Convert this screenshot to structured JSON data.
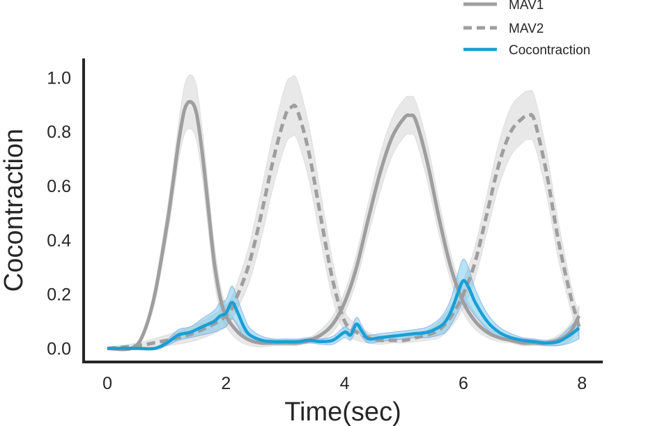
{
  "chart_data": {
    "type": "line",
    "xlabel": "Time(sec)",
    "ylabel": "Cocontraction",
    "xlim": [
      -0.4,
      8.35
    ],
    "ylim": [
      -0.05,
      1.07
    ],
    "xticks": [
      0,
      2,
      4,
      6,
      8
    ],
    "yticks": [
      0.0,
      0.2,
      0.4,
      0.6,
      0.8,
      1.0
    ],
    "ytick_labels": [
      "0.0",
      "0.2",
      "0.4",
      "0.6",
      "0.8",
      "1.0"
    ],
    "grid": false,
    "legend_position": "top-right",
    "colors": {
      "mav": "#9e9e9e",
      "mav_band": "#d6d6d6",
      "cocontraction": "#1a9ed6",
      "cocontraction_band": "#5ec1e8",
      "cocontraction_band_edge": "#6f8ee0",
      "axis": "#262626"
    },
    "series": [
      {
        "name": "MAV1",
        "style": "solid",
        "x": [
          0,
          0.4,
          0.6,
          0.8,
          1.0,
          1.1,
          1.2,
          1.3,
          1.4,
          1.5,
          1.6,
          1.7,
          1.8,
          1.9,
          2.0,
          2.2,
          2.4,
          2.6,
          2.8,
          3.0,
          3.2,
          3.4,
          3.6,
          3.8,
          4.0,
          4.2,
          4.4,
          4.6,
          4.8,
          5.0,
          5.1,
          5.2,
          5.4,
          5.6,
          5.8,
          6.0,
          6.2,
          6.4,
          6.6,
          6.8,
          7.0,
          7.2,
          7.4,
          7.6,
          7.8,
          7.95
        ],
        "y": [
          0.0,
          0.0,
          0.05,
          0.2,
          0.45,
          0.6,
          0.76,
          0.88,
          0.91,
          0.87,
          0.72,
          0.52,
          0.32,
          0.19,
          0.12,
          0.06,
          0.03,
          0.02,
          0.02,
          0.02,
          0.02,
          0.03,
          0.05,
          0.09,
          0.17,
          0.3,
          0.48,
          0.65,
          0.78,
          0.85,
          0.86,
          0.84,
          0.68,
          0.47,
          0.29,
          0.17,
          0.1,
          0.06,
          0.04,
          0.03,
          0.02,
          0.02,
          0.02,
          0.03,
          0.06,
          0.12
        ],
        "band": [
          0.005,
          0.005,
          0.01,
          0.03,
          0.05,
          0.06,
          0.07,
          0.09,
          0.1,
          0.1,
          0.09,
          0.08,
          0.07,
          0.05,
          0.04,
          0.03,
          0.02,
          0.015,
          0.01,
          0.01,
          0.01,
          0.01,
          0.02,
          0.03,
          0.04,
          0.05,
          0.06,
          0.07,
          0.07,
          0.07,
          0.07,
          0.07,
          0.07,
          0.06,
          0.05,
          0.04,
          0.03,
          0.02,
          0.015,
          0.01,
          0.01,
          0.01,
          0.01,
          0.02,
          0.03,
          0.04
        ]
      },
      {
        "name": "MAV2",
        "style": "dashed",
        "x": [
          0,
          0.5,
          1.0,
          1.5,
          2.0,
          2.2,
          2.4,
          2.6,
          2.8,
          3.0,
          3.1,
          3.2,
          3.4,
          3.6,
          3.8,
          4.0,
          4.2,
          4.4,
          4.6,
          4.8,
          5.0,
          5.2,
          5.4,
          5.6,
          5.8,
          6.0,
          6.2,
          6.4,
          6.6,
          6.8,
          7.0,
          7.1,
          7.2,
          7.4,
          7.6,
          7.8,
          7.95
        ],
        "y": [
          0.0,
          0.01,
          0.03,
          0.06,
          0.12,
          0.2,
          0.32,
          0.5,
          0.7,
          0.86,
          0.89,
          0.88,
          0.72,
          0.48,
          0.25,
          0.1,
          0.06,
          0.04,
          0.03,
          0.03,
          0.03,
          0.04,
          0.05,
          0.07,
          0.12,
          0.2,
          0.32,
          0.5,
          0.68,
          0.8,
          0.85,
          0.86,
          0.84,
          0.65,
          0.4,
          0.2,
          0.08
        ],
        "band": [
          0.005,
          0.01,
          0.02,
          0.03,
          0.04,
          0.05,
          0.07,
          0.09,
          0.1,
          0.11,
          0.11,
          0.11,
          0.1,
          0.09,
          0.07,
          0.04,
          0.03,
          0.02,
          0.015,
          0.01,
          0.01,
          0.015,
          0.02,
          0.03,
          0.04,
          0.05,
          0.06,
          0.07,
          0.08,
          0.09,
          0.09,
          0.09,
          0.09,
          0.08,
          0.07,
          0.05,
          0.04
        ]
      },
      {
        "name": "Cocontraction",
        "style": "solid",
        "x": [
          0,
          0.5,
          0.8,
          1.0,
          1.2,
          1.4,
          1.6,
          1.8,
          1.9,
          2.0,
          2.1,
          2.2,
          2.3,
          2.4,
          2.6,
          2.8,
          3.0,
          3.2,
          3.4,
          3.6,
          3.8,
          4.0,
          4.1,
          4.2,
          4.3,
          4.4,
          4.6,
          4.8,
          5.0,
          5.2,
          5.4,
          5.6,
          5.7,
          5.8,
          5.9,
          6.0,
          6.1,
          6.2,
          6.4,
          6.6,
          6.8,
          7.0,
          7.2,
          7.4,
          7.6,
          7.8,
          7.95
        ],
        "y": [
          0.0,
          0.0,
          0.0,
          0.02,
          0.05,
          0.06,
          0.08,
          0.1,
          0.12,
          0.13,
          0.17,
          0.13,
          0.08,
          0.05,
          0.03,
          0.025,
          0.025,
          0.025,
          0.03,
          0.025,
          0.03,
          0.06,
          0.05,
          0.09,
          0.06,
          0.035,
          0.04,
          0.045,
          0.05,
          0.055,
          0.06,
          0.08,
          0.1,
          0.14,
          0.2,
          0.25,
          0.22,
          0.17,
          0.1,
          0.06,
          0.04,
          0.03,
          0.025,
          0.02,
          0.025,
          0.05,
          0.075
        ],
        "band": [
          0.005,
          0.005,
          0.005,
          0.01,
          0.02,
          0.02,
          0.03,
          0.04,
          0.05,
          0.05,
          0.06,
          0.05,
          0.04,
          0.025,
          0.015,
          0.01,
          0.01,
          0.01,
          0.01,
          0.01,
          0.015,
          0.02,
          0.02,
          0.025,
          0.02,
          0.015,
          0.015,
          0.015,
          0.015,
          0.015,
          0.02,
          0.03,
          0.04,
          0.05,
          0.07,
          0.08,
          0.07,
          0.05,
          0.03,
          0.02,
          0.015,
          0.01,
          0.01,
          0.01,
          0.015,
          0.03,
          0.04
        ]
      }
    ]
  }
}
